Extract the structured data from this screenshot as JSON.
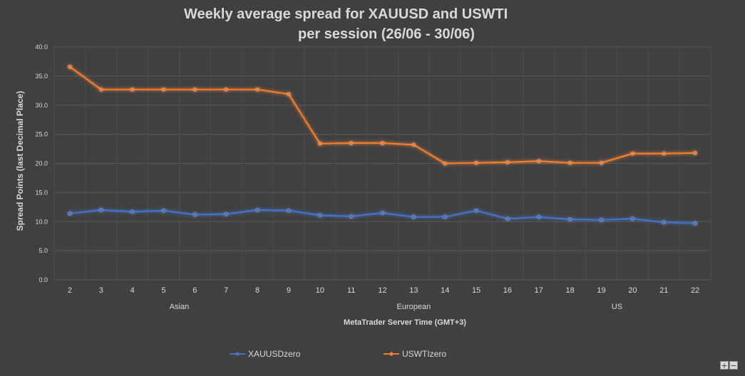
{
  "chart_data": {
    "type": "line",
    "title_lines": [
      "Weekly average spread for XAUUSD and USWTI",
      "per session (26/06 - 30/06)"
    ],
    "xlabel": "MetaTrader Server Time (GMT+3)",
    "ylabel": "Spread Points  (last Decimal Place)",
    "categories": [
      "2",
      "3",
      "4",
      "5",
      "6",
      "7",
      "8",
      "9",
      "10",
      "11",
      "12",
      "13",
      "14",
      "15",
      "16",
      "17",
      "18",
      "19",
      "20",
      "21",
      "22"
    ],
    "sessions": [
      {
        "label": "Asian",
        "center_index": 3.5
      },
      {
        "label": "European",
        "center_index": 11
      },
      {
        "label": "US",
        "center_index": 17.5
      }
    ],
    "ylim": [
      0,
      40
    ],
    "yticks": [
      "0.0",
      "5.0",
      "10.0",
      "15.0",
      "20.0",
      "25.0",
      "30.0",
      "35.0",
      "40.0"
    ],
    "grid": true,
    "legend_position": "bottom",
    "series": [
      {
        "name": "XAUUSDzero",
        "color": "#4472c4",
        "values": [
          11.4,
          12.0,
          11.7,
          11.9,
          11.2,
          11.3,
          12.0,
          11.9,
          11.1,
          10.9,
          11.5,
          10.8,
          10.8,
          11.9,
          10.5,
          10.8,
          10.4,
          10.3,
          10.5,
          9.9,
          9.7
        ]
      },
      {
        "name": "USWTIzero",
        "color": "#ed7d31",
        "values": [
          36.6,
          32.7,
          32.7,
          32.7,
          32.7,
          32.7,
          32.7,
          31.9,
          23.4,
          23.5,
          23.5,
          23.2,
          20.0,
          20.1,
          20.2,
          20.4,
          20.1,
          20.1,
          21.7,
          21.7,
          21.8
        ]
      }
    ]
  },
  "controls": {
    "zoom_in": "+",
    "zoom_out": "−"
  }
}
